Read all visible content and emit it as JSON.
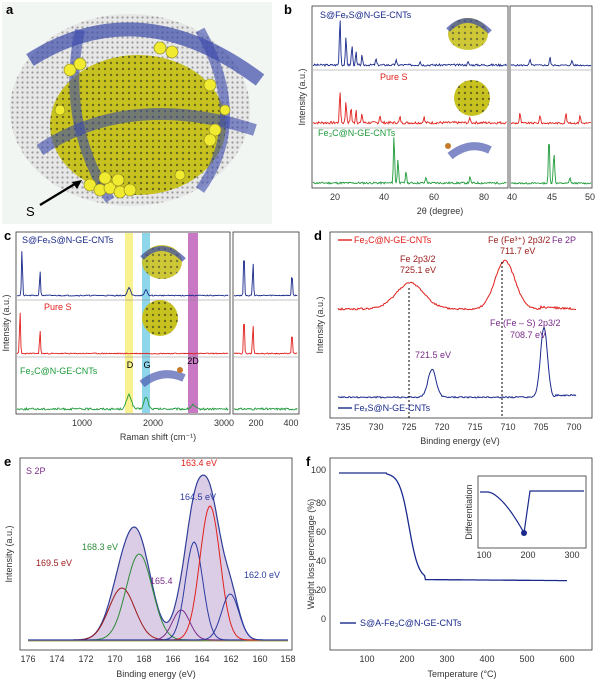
{
  "colors": {
    "blue": "#1a2a8c",
    "red": "#e0201c",
    "green": "#1e9a3a",
    "purple": "#7a2a8a",
    "darkred": "#9a1a1a",
    "fitgreen": "#2e8a3a",
    "fitblue": "#2a3aa0",
    "bandD": "#f6ef7a",
    "bandG": "#7ad0e6",
    "band2D": "#c060b8"
  },
  "panels": {
    "a": {
      "label": "a",
      "arrow_label": "S"
    },
    "b": {
      "label": "b",
      "chart_data": {
        "type": "line",
        "xlabel": "2θ (degree)",
        "ylabel": "Intensity (a.u.)",
        "x_ticks_main": [
          "20",
          "40",
          "60",
          "80"
        ],
        "x_ticks_zoom": [
          "40",
          "45",
          "50"
        ],
        "series": [
          {
            "name": "S@FeₓS@N-GE-CNTs",
            "color": "blue"
          },
          {
            "name": "Pure S",
            "color": "red"
          },
          {
            "name": "Fe₃C@N-GE-CNTs",
            "color": "green"
          }
        ]
      }
    },
    "c": {
      "label": "c",
      "chart_data": {
        "type": "line",
        "xlabel": "Raman shift (cm⁻¹)",
        "ylabel": "Intensity (a.u.)",
        "x_ticks_main": [
          "1000",
          "2000",
          "3000"
        ],
        "x_ticks_zoom": [
          "200",
          "400"
        ],
        "band_labels": [
          "D",
          "G",
          "2D"
        ],
        "series": [
          {
            "name": "S@FeₓS@N-GE-CNTs",
            "color": "blue"
          },
          {
            "name": "Pure S",
            "color": "red"
          },
          {
            "name": "Fe₃C@N-GE-CNTs",
            "color": "green"
          }
        ]
      }
    },
    "d": {
      "label": "d",
      "title": "Fe 2P",
      "chart_data": {
        "type": "line",
        "xlabel": "Binding energy (eV)",
        "ylabel": "Intensity (a.u.)",
        "x_ticks": [
          "735",
          "730",
          "725",
          "720",
          "715",
          "710",
          "705",
          "700"
        ],
        "legend": [
          "Fe₃C@N-GE-CNTs",
          "FeₓS@N-GE-CNTs"
        ],
        "annotations": {
          "fe2p12": "Fe 2p3/2",
          "fe2p12_val": "725.1 eV",
          "fe3": "Fe (Fe³⁺) 2p3/2",
          "fe3_val": "711.7 eV",
          "fes": "Fe (Fe – S) 2p3/2",
          "fes_val": "708.7 eV",
          "p7215": "721.5 eV"
        }
      }
    },
    "e": {
      "label": "e",
      "title": "S 2P",
      "chart_data": {
        "type": "line",
        "xlabel": "Binding energy (eV)",
        "ylabel": "Intensity (a.u.)",
        "x_ticks": [
          "176",
          "174",
          "172",
          "170",
          "168",
          "166",
          "164",
          "162",
          "160",
          "158"
        ],
        "peaks": [
          {
            "label": "169.5 eV",
            "x": 169.5
          },
          {
            "label": "168.3 eV",
            "x": 168.3
          },
          {
            "label": "165.4",
            "x": 165.4
          },
          {
            "label": "164.5 eV",
            "x": 164.5
          },
          {
            "label": "163.4 eV",
            "x": 163.4
          },
          {
            "label": "162.0 eV",
            "x": 162.0
          }
        ]
      }
    },
    "f": {
      "label": "f",
      "chart_data": {
        "type": "line",
        "xlabel": "Temperature (°C)",
        "ylabel": "Weight loss percentage (%)",
        "x_ticks": [
          "100",
          "200",
          "300",
          "400",
          "500",
          "600"
        ],
        "y_ticks": [
          "0",
          "20",
          "40",
          "60",
          "80",
          "100"
        ],
        "legend": [
          "S@A-Fe₃C@N-GE-CNTs"
        ],
        "inset": {
          "ylabel": "Differentiation",
          "x_ticks": [
            "100",
            "200",
            "300"
          ]
        }
      }
    }
  }
}
